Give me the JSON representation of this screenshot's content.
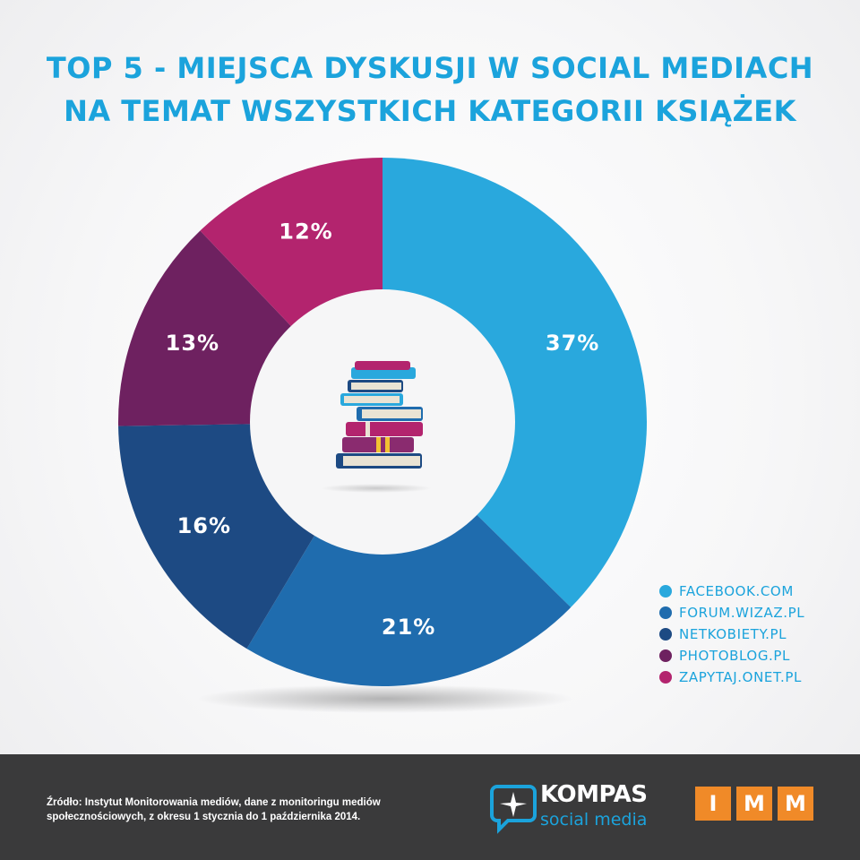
{
  "title": {
    "line1": "TOP 5 - MIEJSCA DYSKUSJI W SOCIAL MEDIACH",
    "line2": "NA TEMAT WSZYSTKICH KATEGORII KSIĄŻEK"
  },
  "chart_data": {
    "type": "pie",
    "subtype": "donut",
    "categories": [
      "FACEBOOK.COM",
      "FORUM.WIZAZ.PL",
      "NETKOBIETY.PL",
      "PHOTOBLOG.PL",
      "ZAPYTAJ.ONET.PL"
    ],
    "values": [
      37,
      21,
      16,
      13,
      12
    ],
    "labels": [
      "37%",
      "21%",
      "16%",
      "13%",
      "12%"
    ],
    "colors": [
      "#29a8dd",
      "#1f6cae",
      "#1d4a83",
      "#6e2160",
      "#b3246e"
    ],
    "start": "top",
    "direction": "clockwise",
    "legend_position": "bottom-right",
    "center_icon": "book-stack-icon"
  },
  "footer": {
    "source_line1": "Źródło: Instytut Monitorowania mediów, dane z monitoringu mediów",
    "source_line2": "społecznościowych, z okresu 1 stycznia do 1 października 2014.",
    "kompas_name": "KOMPAS",
    "kompas_sub": "social media",
    "imm_letters": [
      "I",
      "M",
      "M"
    ]
  }
}
